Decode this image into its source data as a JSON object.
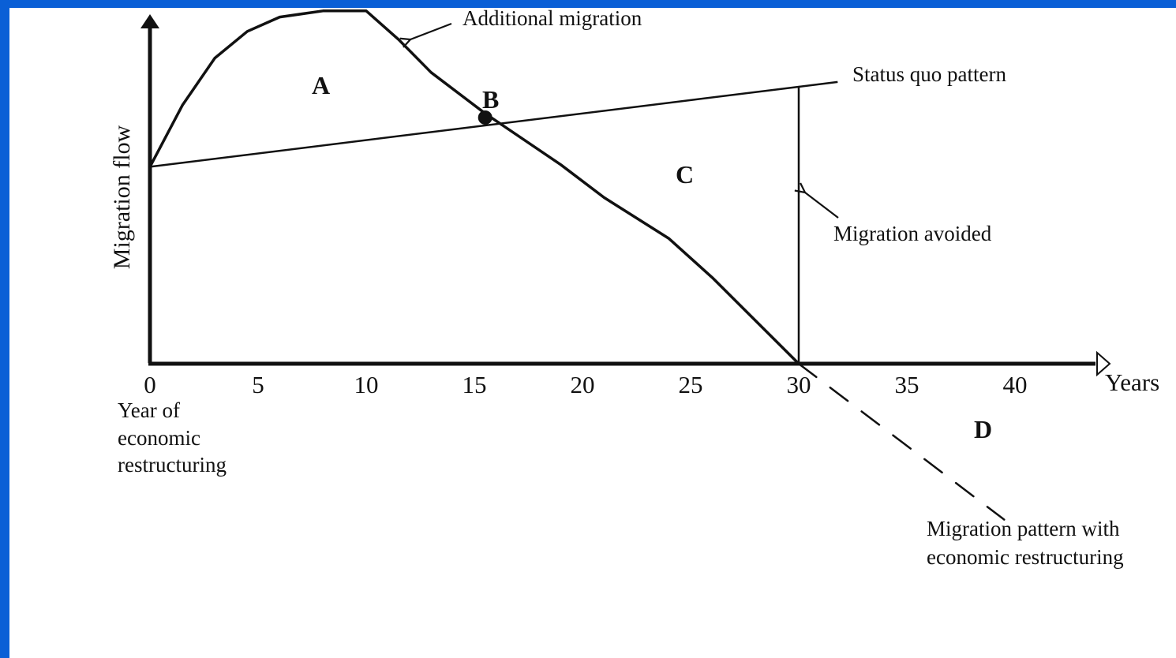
{
  "chart_data": {
    "type": "line",
    "ylabel": "Migration flow",
    "xlabel": "Years",
    "xlim": [
      0,
      40
    ],
    "xticks": [
      0,
      5,
      10,
      15,
      20,
      25,
      30,
      35,
      40
    ],
    "origin_label": [
      "Year of",
      "economic",
      "restructuring"
    ],
    "series": [
      {
        "name": "Status quo pattern",
        "x": [
          0,
          30
        ],
        "y": [
          0.48,
          0.675
        ]
      },
      {
        "name": "Migration pattern with economic restructuring",
        "x": [
          0,
          1.5,
          3,
          4.5,
          6,
          8,
          10,
          11.5,
          13,
          15.5,
          19,
          21,
          24,
          26,
          30
        ],
        "y": [
          0.48,
          0.63,
          0.745,
          0.81,
          0.845,
          0.86,
          0.86,
          0.79,
          0.71,
          0.61,
          0.485,
          0.405,
          0.305,
          0.21,
          0
        ]
      },
      {
        "name": "extrapolation",
        "style": "dashed",
        "x": [
          30,
          39.5
        ],
        "y": [
          0,
          -0.38
        ]
      }
    ],
    "annotations": {
      "additional_migration": "Additional migration",
      "status_quo_pattern": "Status quo pattern",
      "migration_avoided": "Migration avoided",
      "restructuring_line1": "Migration pattern with",
      "restructuring_line2": "economic restructuring"
    },
    "regions": {
      "a": "A",
      "b": "B",
      "c": "C",
      "d": "D"
    },
    "intersection_point": {
      "x": 15.5,
      "y": 0.6
    },
    "avoided_bar_x": 30
  }
}
